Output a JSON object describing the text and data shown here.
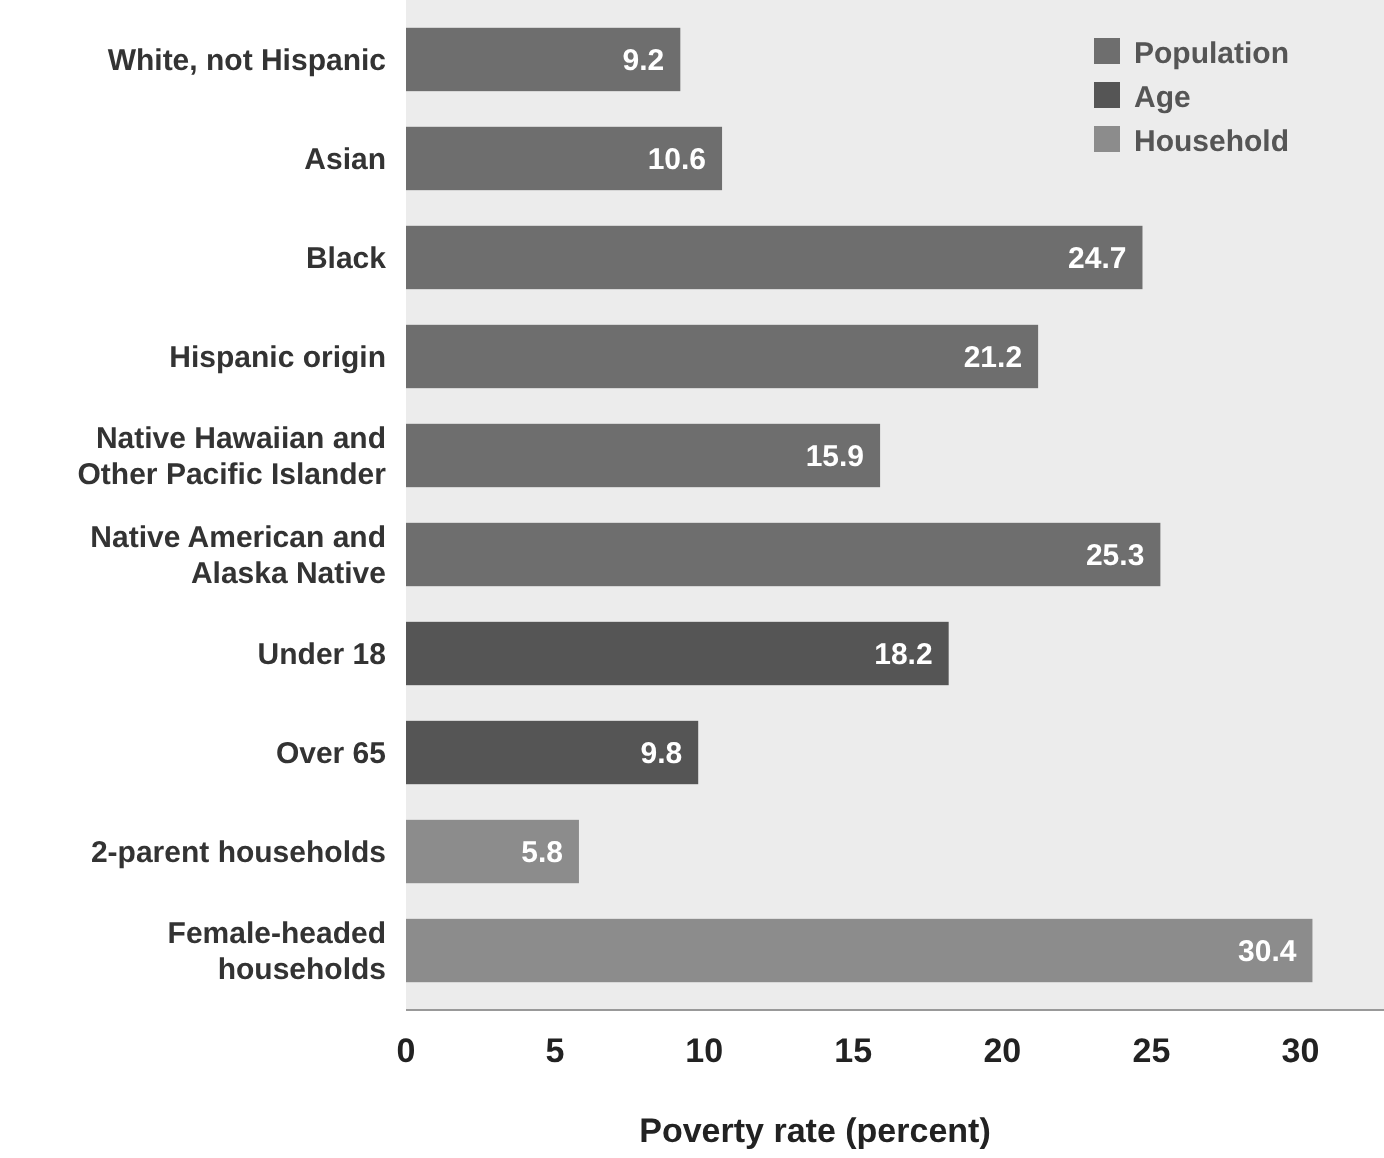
{
  "chart_data": {
    "type": "bar",
    "orientation": "horizontal",
    "xlabel": "Poverty rate  (percent)",
    "categories": [
      "White, not Hispanic",
      "Asian",
      "Black",
      "Hispanic origin",
      "Native Hawaiian and Other Pacific Islander",
      "Native American and Alaska Native",
      "Under 18",
      "Over 65",
      "2-parent households",
      "Female-headed households"
    ],
    "series": [
      {
        "name": "Population",
        "color": "#6e6e6e",
        "values": [
          9.2,
          10.6,
          24.7,
          21.2,
          15.9,
          25.3,
          null,
          null,
          null,
          null
        ]
      },
      {
        "name": "Age",
        "color": "#555555",
        "values": [
          null,
          null,
          null,
          null,
          null,
          null,
          18.2,
          9.8,
          null,
          null
        ]
      },
      {
        "name": "Household",
        "color": "#8c8c8c",
        "values": [
          null,
          null,
          null,
          null,
          null,
          null,
          null,
          null,
          5.8,
          30.4
        ]
      }
    ],
    "xlim": [
      0,
      32.8
    ],
    "xticks": [
      0,
      5,
      10,
      15,
      20,
      25,
      30
    ],
    "data_labels": true,
    "legend": "top right",
    "grid": false
  }
}
